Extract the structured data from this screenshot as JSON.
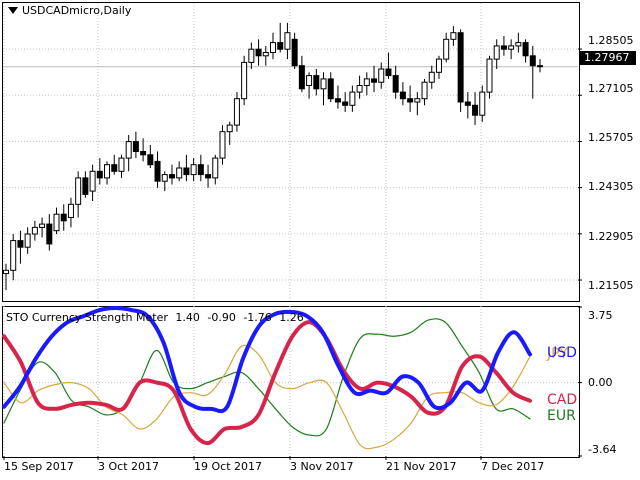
{
  "chart": {
    "symbol_label": "USDCADmicro,Daily",
    "current_price": "1.27967",
    "price_ticks": [
      "1.28505",
      "1.27105",
      "1.25705",
      "1.24305",
      "1.22905",
      "1.21505"
    ],
    "date_ticks": [
      "15 Sep 2017",
      "3 Oct 2017",
      "19 Oct 2017",
      "3 Nov 2017",
      "21 Nov 2017",
      "7 Dec 2017"
    ]
  },
  "indicator": {
    "name": "STO Currency Strength Meter",
    "values": [
      "1.40",
      "-0.90",
      "-1.76",
      "1.26"
    ],
    "scale_ticks": [
      "3.75",
      "0.00",
      "-3.64"
    ],
    "currencies": [
      {
        "code": "USD",
        "color": "#1a1aff"
      },
      {
        "code": "JPY",
        "color": "#d9a640"
      },
      {
        "code": "CAD",
        "color": "#d6244a"
      },
      {
        "code": "EUR",
        "color": "#1e7d1e"
      }
    ]
  },
  "chart_data": {
    "type": "candlestick",
    "title": "USDCADmicro,Daily",
    "ylim": [
      1.209,
      1.299
    ],
    "y_ticks": [
      1.28505,
      1.27105,
      1.25705,
      1.24305,
      1.22905,
      1.21505
    ],
    "current_price": 1.27967,
    "candles": [
      [
        1.217,
        1.22,
        1.212,
        1.218
      ],
      [
        1.218,
        1.229,
        1.215,
        1.227
      ],
      [
        1.227,
        1.23,
        1.22,
        1.225
      ],
      [
        1.225,
        1.231,
        1.223,
        1.229
      ],
      [
        1.229,
        1.233,
        1.227,
        1.231
      ],
      [
        1.231,
        1.234,
        1.228,
        1.232
      ],
      [
        1.232,
        1.235,
        1.224,
        1.226
      ],
      [
        1.23,
        1.237,
        1.229,
        1.235
      ],
      [
        1.235,
        1.238,
        1.23,
        1.233
      ],
      [
        1.234,
        1.24,
        1.231,
        1.238
      ],
      [
        1.238,
        1.248,
        1.234,
        1.246
      ],
      [
        1.246,
        1.248,
        1.24,
        1.241
      ],
      [
        1.242,
        1.25,
        1.239,
        1.248
      ],
      [
        1.248,
        1.252,
        1.244,
        1.246
      ],
      [
        1.246,
        1.251,
        1.244,
        1.25
      ],
      [
        1.25,
        1.253,
        1.247,
        1.248
      ],
      [
        1.248,
        1.253,
        1.246,
        1.252
      ],
      [
        1.252,
        1.259,
        1.248,
        1.257
      ],
      [
        1.257,
        1.26,
        1.252,
        1.254
      ],
      [
        1.254,
        1.258,
        1.251,
        1.253
      ],
      [
        1.253,
        1.256,
        1.249,
        1.25
      ],
      [
        1.251,
        1.254,
        1.243,
        1.245
      ],
      [
        1.245,
        1.248,
        1.242,
        1.247
      ],
      [
        1.247,
        1.25,
        1.244,
        1.246
      ],
      [
        1.246,
        1.251,
        1.245,
        1.249
      ],
      [
        1.249,
        1.253,
        1.245,
        1.247
      ],
      [
        1.247,
        1.252,
        1.245,
        1.25
      ],
      [
        1.25,
        1.253,
        1.245,
        1.247
      ],
      [
        1.247,
        1.25,
        1.243,
        1.246
      ],
      [
        1.246,
        1.253,
        1.244,
        1.252
      ],
      [
        1.252,
        1.262,
        1.25,
        1.26
      ],
      [
        1.26,
        1.263,
        1.256,
        1.262
      ],
      [
        1.262,
        1.272,
        1.26,
        1.27
      ],
      [
        1.27,
        1.283,
        1.268,
        1.281
      ],
      [
        1.281,
        1.287,
        1.279,
        1.285
      ],
      [
        1.285,
        1.288,
        1.28,
        1.283
      ],
      [
        1.283,
        1.286,
        1.28,
        1.284
      ],
      [
        1.284,
        1.29,
        1.282,
        1.287
      ],
      [
        1.287,
        1.293,
        1.284,
        1.285
      ],
      [
        1.285,
        1.293,
        1.282,
        1.29
      ],
      [
        1.288,
        1.29,
        1.279,
        1.28
      ],
      [
        1.28,
        1.283,
        1.272,
        1.273
      ],
      [
        1.274,
        1.278,
        1.27,
        1.277
      ],
      [
        1.277,
        1.279,
        1.271,
        1.273
      ],
      [
        1.273,
        1.278,
        1.268,
        1.276
      ],
      [
        1.276,
        1.278,
        1.269,
        1.27
      ],
      [
        1.27,
        1.274,
        1.267,
        1.269
      ],
      [
        1.269,
        1.272,
        1.266,
        1.268
      ],
      [
        1.268,
        1.274,
        1.266,
        1.272
      ],
      [
        1.272,
        1.277,
        1.27,
        1.274
      ],
      [
        1.274,
        1.278,
        1.271,
        1.276
      ],
      [
        1.276,
        1.28,
        1.272,
        1.275
      ],
      [
        1.275,
        1.281,
        1.273,
        1.279
      ],
      [
        1.279,
        1.284,
        1.276,
        1.277
      ],
      [
        1.277,
        1.28,
        1.27,
        1.272
      ],
      [
        1.272,
        1.275,
        1.268,
        1.27
      ],
      [
        1.27,
        1.274,
        1.266,
        1.269
      ],
      [
        1.269,
        1.272,
        1.265,
        1.27
      ],
      [
        1.27,
        1.276,
        1.268,
        1.275
      ],
      [
        1.275,
        1.28,
        1.273,
        1.278
      ],
      [
        1.278,
        1.283,
        1.276,
        1.282
      ],
      [
        1.282,
        1.29,
        1.281,
        1.288
      ],
      [
        1.288,
        1.292,
        1.286,
        1.29
      ],
      [
        1.29,
        1.291,
        1.266,
        1.269
      ],
      [
        1.269,
        1.272,
        1.264,
        1.268
      ],
      [
        1.268,
        1.272,
        1.262,
        1.265
      ],
      [
        1.265,
        1.274,
        1.263,
        1.272
      ],
      [
        1.272,
        1.283,
        1.27,
        1.282
      ],
      [
        1.282,
        1.288,
        1.279,
        1.286
      ],
      [
        1.286,
        1.289,
        1.283,
        1.285
      ],
      [
        1.285,
        1.288,
        1.282,
        1.286
      ],
      [
        1.286,
        1.29,
        1.284,
        1.287
      ],
      [
        1.287,
        1.288,
        1.281,
        1.283
      ],
      [
        1.283,
        1.286,
        1.27,
        1.28
      ],
      [
        1.28,
        1.282,
        1.278,
        1.2797
      ]
    ],
    "indicator": {
      "title": "STO Currency Strength Meter",
      "ylim": [
        -3.64,
        3.75
      ],
      "series": [
        {
          "name": "USD",
          "values": [
            -1.2,
            -0.2,
            1.2,
            2.3,
            3.0,
            3.3,
            3.6,
            3.7,
            3.6,
            3.3,
            2.0,
            -0.5,
            -1.2,
            -1.3,
            -1.2,
            1.2,
            2.8,
            3.4,
            3.5,
            3.3,
            2.5,
            0.8,
            -0.5,
            -0.4,
            -0.5,
            0.3,
            0.0,
            -1.2,
            -1.0,
            0.0,
            -0.4,
            1.5,
            2.5,
            1.4
          ]
        },
        {
          "name": "JPY",
          "values": [
            0.0,
            -1.0,
            -0.4,
            -0.1,
            0.0,
            -0.3,
            -1.2,
            -1.6,
            -2.3,
            -1.8,
            -0.7,
            -0.5,
            -0.6,
            0.4,
            1.8,
            1.4,
            0.0,
            -0.3,
            0.0,
            0.0,
            -1.5,
            -3.1,
            -3.2,
            -2.8,
            -2.0,
            -0.7,
            -0.5,
            -0.5,
            -1.0,
            -1.1,
            -0.2,
            1.3
          ]
        },
        {
          "name": "CAD",
          "values": [
            2.3,
            1.0,
            -1.0,
            -1.3,
            -1.1,
            -1.0,
            -1.1,
            -1.3,
            0.0,
            0.0,
            -0.4,
            -2.3,
            -3.0,
            -2.3,
            -2.2,
            -1.6,
            0.5,
            2.3,
            3.0,
            2.2,
            0.6,
            -0.3,
            0.0,
            -0.2,
            -0.7,
            -1.5,
            -1.2,
            0.8,
            1.3,
            0.5,
            -0.5,
            -0.9
          ]
        },
        {
          "name": "EUR",
          "values": [
            -2.0,
            -0.3,
            1.0,
            0.5,
            -0.9,
            -1.2,
            -1.6,
            -1.3,
            0.0,
            1.6,
            0.0,
            -0.3,
            0.0,
            0.3,
            0.5,
            -0.3,
            -1.3,
            -2.2,
            -2.6,
            -2.3,
            0.3,
            2.2,
            2.4,
            2.3,
            2.5,
            3.1,
            3.0,
            1.8,
            0.5,
            -1.3,
            -1.3,
            -1.8
          ]
        }
      ]
    }
  }
}
